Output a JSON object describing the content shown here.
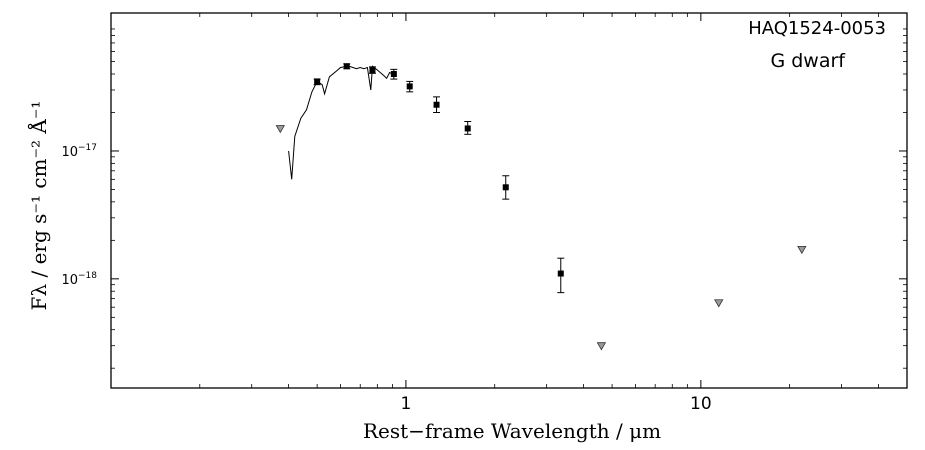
{
  "chart_data": {
    "type": "scatter",
    "title": "",
    "annotations": [
      "HAQ1524-0053",
      "G dwarf"
    ],
    "xlabel": "Rest−frame Wavelength / μm",
    "ylabel": "Fλ / erg s⁻¹ cm⁻² Å⁻¹",
    "xscale": "log",
    "yscale": "log",
    "xlim": [
      0.1,
      50
    ],
    "ylim": [
      1.4e-19,
      1.2e-16
    ],
    "x_ticks": [
      {
        "value": 1,
        "label": "1"
      },
      {
        "value": 10,
        "label": "10"
      }
    ],
    "y_ticks": [
      {
        "value": 1e-18,
        "mantissa": "10",
        "exponent": "−18"
      },
      {
        "value": 1e-17,
        "mantissa": "10",
        "exponent": "−17"
      }
    ],
    "grid": false,
    "legend": "none",
    "series": [
      {
        "type": "line",
        "points": [
          [
            0.4,
            1e-17
          ],
          [
            0.41,
            6e-18
          ],
          [
            0.42,
            1.3e-17
          ],
          [
            0.44,
            1.8e-17
          ],
          [
            0.46,
            2.1e-17
          ],
          [
            0.48,
            2.9e-17
          ],
          [
            0.5,
            3.5e-17
          ],
          [
            0.52,
            3.3e-17
          ],
          [
            0.53,
            2.8e-17
          ],
          [
            0.55,
            3.8e-17
          ],
          [
            0.58,
            4.2e-17
          ],
          [
            0.6,
            4.5e-17
          ],
          [
            0.63,
            4.6e-17
          ],
          [
            0.65,
            4.55e-17
          ],
          [
            0.68,
            4.4e-17
          ],
          [
            0.7,
            4.5e-17
          ],
          [
            0.72,
            4.4e-17
          ],
          [
            0.74,
            4.5e-17
          ],
          [
            0.76,
            3e-17
          ],
          [
            0.77,
            4.6e-17
          ],
          [
            0.8,
            4.3e-17
          ],
          [
            0.84,
            3.9e-17
          ],
          [
            0.86,
            3.7e-17
          ],
          [
            0.88,
            4.1e-17
          ],
          [
            0.9,
            4e-17
          ]
        ]
      },
      {
        "type": "detections",
        "points": [
          {
            "x": 0.5,
            "y": 3.5e-17,
            "ylo": 3.3e-17,
            "yhi": 3.65e-17
          },
          {
            "x": 0.63,
            "y": 4.6e-17,
            "ylo": 4.4e-17,
            "yhi": 4.8e-17
          },
          {
            "x": 0.77,
            "y": 4.3e-17,
            "ylo": 4.05e-17,
            "yhi": 4.55e-17
          },
          {
            "x": 0.91,
            "y": 4e-17,
            "ylo": 3.65e-17,
            "yhi": 4.35e-17
          },
          {
            "x": 1.03,
            "y": 3.2e-17,
            "ylo": 2.9e-17,
            "yhi": 3.5e-17
          },
          {
            "x": 1.27,
            "y": 2.3e-17,
            "ylo": 2e-17,
            "yhi": 2.65e-17
          },
          {
            "x": 1.62,
            "y": 1.5e-17,
            "ylo": 1.35e-17,
            "yhi": 1.7e-17
          },
          {
            "x": 2.18,
            "y": 5.2e-18,
            "ylo": 4.2e-18,
            "yhi": 6.4e-18
          },
          {
            "x": 3.35,
            "y": 1.1e-18,
            "ylo": 7.8e-19,
            "yhi": 1.45e-18
          }
        ]
      },
      {
        "type": "upper_limits",
        "points": [
          {
            "x": 0.375,
            "y": 1.5e-17
          },
          {
            "x": 4.6,
            "y": 3e-19
          },
          {
            "x": 11.5,
            "y": 6.5e-19
          },
          {
            "x": 22.0,
            "y": 1.7e-18
          }
        ]
      }
    ]
  },
  "colors": {
    "axis": "#000000",
    "marker": "#000000",
    "upper_limit_fill": "#9a9a9a"
  }
}
